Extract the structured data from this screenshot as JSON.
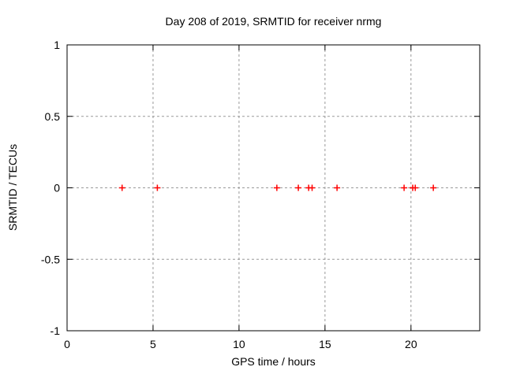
{
  "chart_data": {
    "type": "scatter",
    "title": "Day 208 of 2019, SRMTID for receiver nrmg",
    "xlabel": "GPS time / hours",
    "ylabel": "SRMTID / TECUs",
    "xlim": [
      0,
      24
    ],
    "ylim": [
      -1,
      1
    ],
    "xticks": {
      "values": [
        0,
        5,
        10,
        15,
        20
      ],
      "labels": [
        "0",
        "5",
        "10",
        "15",
        "20"
      ]
    },
    "yticks": {
      "values": [
        1,
        0.5,
        0,
        -0.5,
        -1
      ],
      "labels": [
        "1",
        "0.5",
        "0",
        "-0.5",
        "-1"
      ]
    },
    "grid": true,
    "legend": "none",
    "series": [
      {
        "name": "SRMTID",
        "marker": "plus",
        "color": "#ff0000",
        "x": [
          3.2,
          5.25,
          12.2,
          13.45,
          14.05,
          14.25,
          15.7,
          19.6,
          20.1,
          20.25,
          21.3
        ],
        "y": [
          0,
          0,
          0,
          0,
          0,
          0,
          0,
          0,
          0,
          0,
          0
        ]
      }
    ]
  },
  "colors": {
    "background": "#ffffff",
    "frame": "#000000",
    "grid": "#999999",
    "text": "#000000",
    "marker": "#ff0000"
  }
}
